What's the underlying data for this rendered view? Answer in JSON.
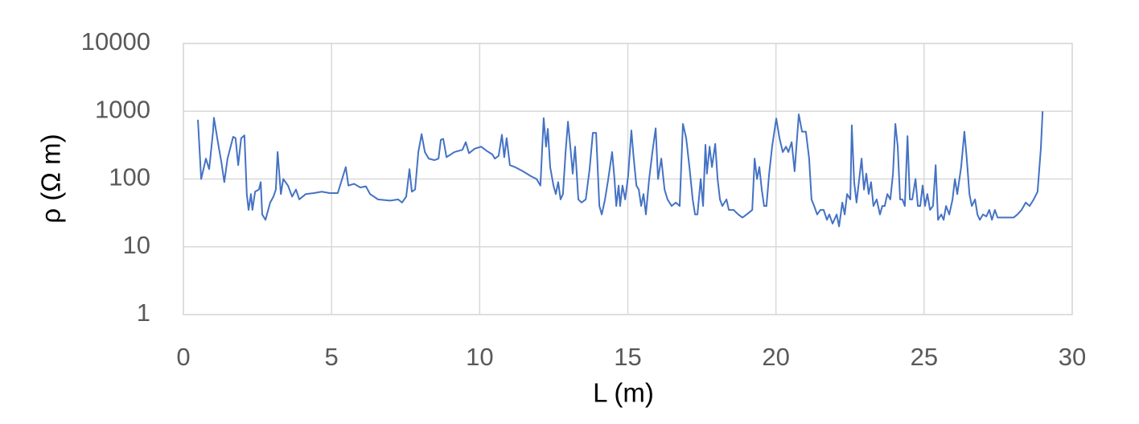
{
  "chart_data": {
    "type": "line",
    "x_label": "L (m)",
    "y_label": "ρ (Ω m)",
    "xlim": [
      0,
      30
    ],
    "xticks": [
      0,
      5,
      10,
      15,
      20,
      25,
      30
    ],
    "ylim": [
      1,
      10000
    ],
    "yticks": [
      1,
      10,
      100,
      1000,
      10000
    ],
    "y_scale": "log",
    "grid": true,
    "x": [
      0.49,
      0.6,
      0.76,
      0.87,
      1.0,
      1.03,
      1.19,
      1.28,
      1.38,
      1.49,
      1.68,
      1.76,
      1.85,
      1.95,
      2.06,
      2.14,
      2.2,
      2.28,
      2.33,
      2.42,
      2.55,
      2.61,
      2.66,
      2.77,
      2.93,
      3.04,
      3.12,
      3.18,
      3.29,
      3.37,
      3.53,
      3.67,
      3.8,
      3.91,
      4.13,
      4.4,
      4.67,
      4.94,
      5.21,
      5.48,
      5.57,
      5.76,
      5.97,
      6.16,
      6.3,
      6.57,
      6.98,
      7.25,
      7.38,
      7.52,
      7.63,
      7.71,
      7.82,
      7.93,
      8.04,
      8.15,
      8.28,
      8.47,
      8.61,
      8.69,
      8.77,
      8.88,
      9.15,
      9.42,
      9.53,
      9.64,
      9.83,
      10.05,
      10.24,
      10.43,
      10.51,
      10.64,
      10.75,
      10.83,
      10.91,
      11.02,
      11.19,
      11.46,
      11.73,
      11.92,
      12.05,
      12.16,
      12.24,
      12.3,
      12.38,
      12.49,
      12.57,
      12.65,
      12.73,
      12.81,
      12.9,
      12.98,
      13.06,
      13.14,
      13.22,
      13.33,
      13.44,
      13.58,
      13.71,
      13.82,
      13.93,
      14.04,
      14.12,
      14.23,
      14.34,
      14.47,
      14.55,
      14.61,
      14.69,
      14.74,
      14.82,
      14.91,
      15.01,
      15.12,
      15.2,
      15.29,
      15.37,
      15.45,
      15.53,
      15.61,
      15.72,
      15.83,
      15.94,
      16.02,
      16.13,
      16.24,
      16.34,
      16.48,
      16.62,
      16.75,
      16.86,
      16.97,
      17.08,
      17.19,
      17.27,
      17.35,
      17.46,
      17.54,
      17.62,
      17.67,
      17.76,
      17.84,
      17.95,
      18.03,
      18.11,
      18.19,
      18.33,
      18.41,
      18.57,
      18.73,
      18.87,
      19.01,
      19.2,
      19.28,
      19.36,
      19.44,
      19.52,
      19.6,
      19.68,
      19.77,
      19.87,
      20.01,
      20.12,
      20.23,
      20.34,
      20.42,
      20.53,
      20.63,
      20.77,
      20.88,
      21.01,
      21.12,
      21.2,
      21.29,
      21.39,
      21.5,
      21.61,
      21.72,
      21.8,
      21.91,
      22.05,
      22.13,
      22.24,
      22.32,
      22.4,
      22.51,
      22.56,
      22.64,
      22.72,
      22.81,
      22.89,
      22.97,
      23.05,
      23.13,
      23.21,
      23.29,
      23.4,
      23.51,
      23.59,
      23.67,
      23.76,
      23.86,
      23.95,
      24.03,
      24.11,
      24.19,
      24.27,
      24.35,
      24.44,
      24.52,
      24.6,
      24.71,
      24.79,
      24.87,
      24.95,
      25.03,
      25.11,
      25.2,
      25.3,
      25.39,
      25.47,
      25.58,
      25.66,
      25.74,
      25.85,
      25.96,
      26.04,
      26.12,
      26.25,
      26.36,
      26.44,
      26.53,
      26.61,
      26.72,
      26.8,
      26.88,
      26.99,
      27.1,
      27.2,
      27.29,
      27.39,
      27.48,
      27.75,
      28.02,
      28.15,
      28.29,
      28.43,
      28.56,
      28.7,
      28.83,
      28.94,
      29.0
    ],
    "series": [
      {
        "color": "#4472c4",
        "values": [
          750,
          100,
          200,
          140,
          500,
          800,
          300,
          180,
          90,
          200,
          420,
          400,
          160,
          400,
          440,
          60,
          35,
          60,
          35,
          65,
          70,
          90,
          30,
          25,
          45,
          55,
          70,
          250,
          60,
          100,
          80,
          55,
          70,
          50,
          60,
          62,
          65,
          62,
          62,
          150,
          80,
          85,
          75,
          78,
          60,
          50,
          48,
          50,
          45,
          55,
          140,
          65,
          70,
          250,
          460,
          250,
          200,
          190,
          200,
          380,
          390,
          210,
          250,
          270,
          350,
          240,
          280,
          300,
          260,
          230,
          200,
          220,
          450,
          210,
          400,
          160,
          150,
          130,
          110,
          100,
          80,
          790,
          300,
          550,
          150,
          80,
          60,
          90,
          50,
          60,
          250,
          700,
          300,
          120,
          300,
          50,
          45,
          50,
          140,
          480,
          480,
          40,
          30,
          50,
          100,
          250,
          100,
          40,
          80,
          40,
          80,
          50,
          110,
          520,
          200,
          80,
          70,
          40,
          60,
          30,
          100,
          250,
          560,
          100,
          200,
          70,
          50,
          40,
          45,
          40,
          650,
          400,
          150,
          50,
          30,
          30,
          100,
          40,
          320,
          120,
          300,
          150,
          330,
          100,
          50,
          40,
          50,
          35,
          35,
          30,
          27,
          30,
          35,
          200,
          100,
          150,
          70,
          40,
          40,
          120,
          300,
          780,
          400,
          250,
          300,
          250,
          350,
          130,
          900,
          500,
          500,
          200,
          50,
          40,
          30,
          35,
          35,
          25,
          30,
          22,
          30,
          20,
          45,
          30,
          60,
          50,
          620,
          90,
          45,
          100,
          200,
          70,
          120,
          60,
          90,
          40,
          50,
          30,
          40,
          40,
          60,
          50,
          120,
          650,
          300,
          50,
          50,
          40,
          430,
          50,
          50,
          100,
          40,
          40,
          80,
          40,
          60,
          35,
          40,
          160,
          25,
          30,
          25,
          40,
          30,
          50,
          100,
          60,
          150,
          500,
          200,
          60,
          40,
          50,
          30,
          25,
          30,
          28,
          35,
          25,
          35,
          27,
          27,
          27,
          30,
          35,
          45,
          40,
          50,
          65,
          280,
          1000
        ]
      }
    ]
  }
}
